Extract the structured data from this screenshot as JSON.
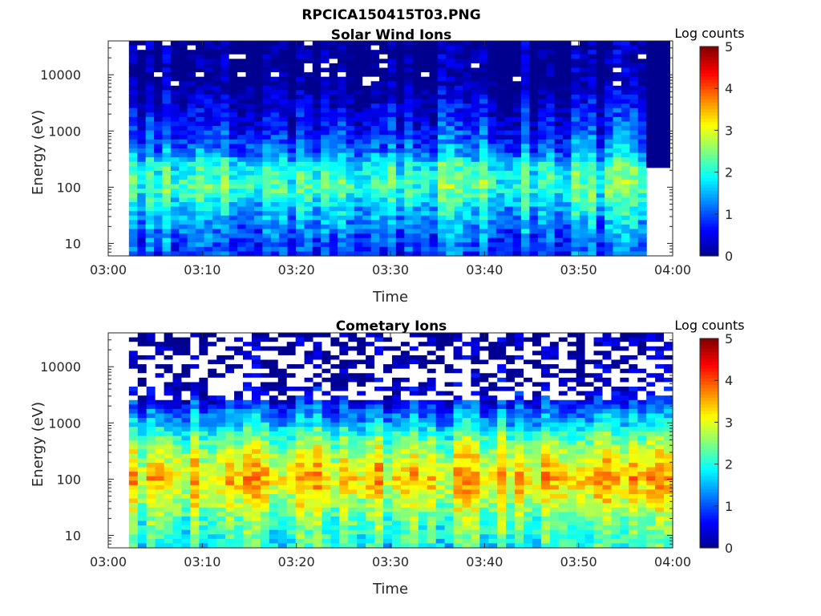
{
  "figure_title": "RPCICA150415T03.PNG",
  "colormap": [
    "#00008f",
    "#0000ff",
    "#0080ff",
    "#00ffff",
    "#80ff80",
    "#ffff00",
    "#ff8000",
    "#ff0000",
    "#800000"
  ],
  "chart_data": [
    {
      "type": "heatmap",
      "title": "Solar Wind Ions",
      "xlabel": "Time",
      "ylabel": "Energy (eV)",
      "x_tick_labels": [
        "03:00",
        "03:10",
        "03:20",
        "03:30",
        "03:40",
        "03:50",
        "04:00"
      ],
      "xlim_minutes": [
        0,
        60
      ],
      "y_scale": "log",
      "ylim": [
        6,
        40000
      ],
      "y_tick_values": [
        10,
        100,
        1000,
        10000
      ],
      "y_tick_labels": [
        "10",
        "100",
        "1000",
        "10000"
      ],
      "colorbar": {
        "label": "Log counts",
        "range": [
          0,
          5
        ],
        "tick_labels": [
          "0",
          "1",
          "2",
          "3",
          "4",
          "5"
        ]
      },
      "data_start_minute": 2.2,
      "data_end_minute": 57.2,
      "profile": [
        {
          "energy": 6,
          "log_counts": 0.9
        },
        {
          "energy": 15,
          "log_counts": 1.2
        },
        {
          "energy": 40,
          "log_counts": 1.7
        },
        {
          "energy": 100,
          "log_counts": 2.3
        },
        {
          "energy": 250,
          "log_counts": 2.0
        },
        {
          "energy": 400,
          "log_counts": 1.3
        },
        {
          "energy": 1000,
          "log_counts": 0.8
        },
        {
          "energy": 3000,
          "log_counts": 0.4
        },
        {
          "energy": 8000,
          "log_counts": 0.0
        },
        {
          "energy": 40000,
          "log_counts": 0.0
        }
      ]
    },
    {
      "type": "heatmap",
      "title": "Cometary Ions",
      "xlabel": "Time",
      "ylabel": "Energy (eV)",
      "x_tick_labels": [
        "03:00",
        "03:10",
        "03:20",
        "03:30",
        "03:40",
        "03:50",
        "04:00"
      ],
      "xlim_minutes": [
        0,
        60
      ],
      "y_scale": "log",
      "ylim": [
        6,
        40000
      ],
      "y_tick_values": [
        10,
        100,
        1000,
        10000
      ],
      "y_tick_labels": [
        "10",
        "100",
        "1000",
        "10000"
      ],
      "colorbar": {
        "label": "Log counts",
        "range": [
          0,
          5
        ],
        "tick_labels": [
          "0",
          "1",
          "2",
          "3",
          "4",
          "5"
        ]
      },
      "data_start_minute": 2.2,
      "data_end_minute": 60,
      "profile": [
        {
          "energy": 6,
          "log_counts": 2.0
        },
        {
          "energy": 20,
          "log_counts": 2.4
        },
        {
          "energy": 60,
          "log_counts": 3.1
        },
        {
          "energy": 100,
          "log_counts": 3.4
        },
        {
          "energy": 200,
          "log_counts": 3.0
        },
        {
          "energy": 500,
          "log_counts": 2.4
        },
        {
          "energy": 1000,
          "log_counts": 1.6
        },
        {
          "energy": 2500,
          "log_counts": 0.6
        },
        {
          "energy": 5000,
          "log_counts": 0.1
        },
        {
          "energy": 40000,
          "log_counts": 0.0
        }
      ]
    }
  ]
}
